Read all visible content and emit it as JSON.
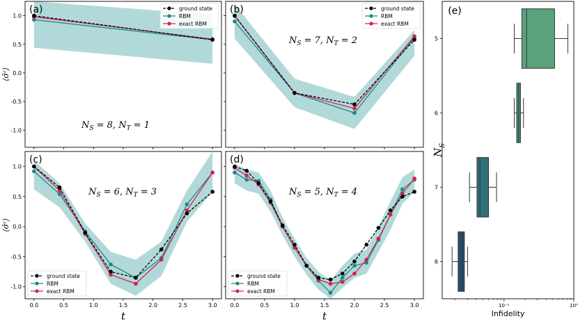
{
  "colors": {
    "ground": "#000000",
    "rbm": "#1a8a8a",
    "exact": "#d6204b",
    "band": "#7fbfbf",
    "box5": "#5aa37a",
    "box6": "#3f8f7c",
    "box7": "#2f6f7a",
    "box8": "#2a4d6e"
  },
  "legend": {
    "ground": "ground state",
    "rbm": "RBM",
    "exact": "exact RBM"
  },
  "labels": {
    "xlabel": "t",
    "ylabel": "⟨σ̂ᶻ⟩",
    "e_xlabel": "Infidelity",
    "e_ylabel": "N",
    "e_ylabel_sub": "S"
  },
  "chart_data": [
    {
      "type": "line",
      "panel": "(a)",
      "annotation": "N_S = 8, N_T = 1",
      "ylim": [
        -1.3,
        1.25
      ],
      "xlim": [
        -0.15,
        3.15
      ],
      "yticks": [
        -1.0,
        -0.5,
        0.0,
        0.5,
        1.0
      ],
      "legend_position": "top-right",
      "series": [
        {
          "name": "ground state",
          "x": [
            0.0,
            3.0
          ],
          "y": [
            1.0,
            0.58
          ]
        },
        {
          "name": "RBM",
          "x": [
            0.0,
            3.0
          ],
          "y": [
            0.93,
            0.58
          ],
          "band_lo": [
            0.44,
            0.16
          ],
          "band_hi": [
            1.25,
            1.02
          ]
        },
        {
          "name": "exact RBM",
          "x": [
            0.0,
            3.0
          ],
          "y": [
            0.98,
            0.59
          ]
        }
      ]
    },
    {
      "type": "line",
      "panel": "(b)",
      "annotation": "N_S = 7, N_T = 2",
      "ylim": [
        -1.3,
        1.25
      ],
      "xlim": [
        -0.15,
        3.15
      ],
      "legend_position": "top-right",
      "series": [
        {
          "name": "ground state",
          "x": [
            0.0,
            1.0,
            2.0,
            3.0
          ],
          "y": [
            1.0,
            -0.35,
            -0.55,
            0.58
          ]
        },
        {
          "name": "RBM",
          "x": [
            0.0,
            1.0,
            2.0,
            3.0
          ],
          "y": [
            0.9,
            -0.35,
            -0.7,
            0.62
          ],
          "band_lo": [
            0.6,
            -0.6,
            -0.98,
            0.3
          ],
          "band_hi": [
            1.2,
            -0.1,
            -0.42,
            0.75
          ]
        },
        {
          "name": "exact RBM",
          "x": [
            0.0,
            1.0,
            2.0,
            3.0
          ],
          "y": [
            1.0,
            -0.35,
            -0.62,
            0.64
          ]
        }
      ]
    },
    {
      "type": "line",
      "panel": "(c)",
      "annotation": "N_S = 6, N_T = 3",
      "ylim": [
        -1.2,
        1.25
      ],
      "xlim": [
        -0.15,
        3.15
      ],
      "xticks": [
        0.0,
        0.5,
        1.0,
        1.5,
        2.0,
        2.5,
        3.0
      ],
      "yticks": [
        -1.0,
        -0.5,
        0.0,
        0.5,
        1.0
      ],
      "legend_position": "bottom-left",
      "series": [
        {
          "name": "ground state",
          "x": [
            0.0,
            0.43,
            0.86,
            1.29,
            1.71,
            2.14,
            2.57,
            3.0
          ],
          "y": [
            1.0,
            0.65,
            -0.1,
            -0.75,
            -0.85,
            -0.38,
            0.22,
            0.58
          ]
        },
        {
          "name": "RBM",
          "x": [
            0.0,
            0.43,
            0.86,
            1.29,
            1.71,
            2.14,
            2.57,
            3.0
          ],
          "y": [
            0.92,
            0.54,
            -0.08,
            -0.63,
            -0.85,
            -0.52,
            0.37,
            0.9
          ],
          "band_lo": [
            0.62,
            0.32,
            -0.25,
            -0.95,
            -1.15,
            -0.82,
            0.08,
            0.58
          ],
          "band_hi": [
            1.1,
            0.72,
            0.05,
            -0.42,
            -0.55,
            -0.25,
            0.6,
            1.25
          ]
        },
        {
          "name": "exact RBM",
          "x": [
            0.0,
            0.43,
            0.86,
            1.29,
            1.71,
            2.14,
            2.57,
            3.0
          ],
          "y": [
            1.0,
            0.6,
            -0.12,
            -0.8,
            -0.95,
            -0.55,
            0.27,
            0.9
          ]
        }
      ]
    },
    {
      "type": "line",
      "panel": "(d)",
      "annotation": "N_S = 5, N_T = 4",
      "ylim": [
        -1.2,
        1.25
      ],
      "xlim": [
        -0.15,
        3.15
      ],
      "xticks": [
        0.0,
        0.5,
        1.0,
        1.5,
        2.0,
        2.5,
        3.0
      ],
      "legend_position": "bottom-left",
      "series": [
        {
          "name": "ground state",
          "x": [
            0.0,
            0.2,
            0.4,
            0.6,
            0.8,
            1.0,
            1.2,
            1.4,
            1.6,
            1.8,
            2.0,
            2.2,
            2.4,
            2.6,
            2.8,
            3.0
          ],
          "y": [
            1.0,
            0.93,
            0.72,
            0.42,
            0.02,
            -0.3,
            -0.65,
            -0.85,
            -0.88,
            -0.78,
            -0.58,
            -0.3,
            -0.02,
            0.27,
            0.5,
            0.58
          ]
        },
        {
          "name": "RBM",
          "x": [
            0.0,
            0.2,
            0.4,
            0.6,
            0.8,
            1.0,
            1.2,
            1.4,
            1.6,
            1.8,
            2.0,
            2.2,
            2.4,
            2.6,
            2.8,
            3.0
          ],
          "y": [
            0.9,
            0.78,
            0.76,
            0.45,
            0.0,
            -0.35,
            -0.65,
            -0.9,
            -1.1,
            -0.85,
            -0.65,
            -0.6,
            -0.22,
            0.2,
            0.62,
            0.78
          ],
          "band_lo": [
            0.72,
            0.6,
            0.55,
            0.25,
            -0.15,
            -0.5,
            -0.8,
            -1.05,
            -1.2,
            -1.02,
            -0.85,
            -0.78,
            -0.42,
            -0.05,
            0.38,
            0.58
          ],
          "band_hi": [
            1.05,
            0.95,
            0.9,
            0.6,
            0.15,
            -0.2,
            -0.52,
            -0.75,
            -0.9,
            -0.65,
            -0.45,
            -0.38,
            0.0,
            0.42,
            0.82,
            0.95
          ]
        },
        {
          "name": "exact RBM",
          "x": [
            0.0,
            0.2,
            0.4,
            0.6,
            0.8,
            1.0,
            1.2,
            1.4,
            1.6,
            1.8,
            2.0,
            2.2,
            2.4,
            2.6,
            2.8,
            3.0
          ],
          "y": [
            0.98,
            0.85,
            0.7,
            0.4,
            0.0,
            -0.35,
            -0.65,
            -0.88,
            -0.95,
            -0.92,
            -0.78,
            -0.55,
            -0.2,
            0.2,
            0.55,
            0.8
          ]
        }
      ]
    },
    {
      "type": "box",
      "panel": "(e)",
      "xlabel": "Infidelity",
      "ylabel": "N_S",
      "xscale": "log",
      "xlim": [
        0.013,
        1.0
      ],
      "xticks": [
        0.1,
        1.0
      ],
      "xtick_labels": [
        "10⁻¹",
        "10⁰"
      ],
      "categories": [
        "5",
        "6",
        "7",
        "8"
      ],
      "boxes": [
        {
          "category": "5",
          "whislo": 0.14,
          "q1": 0.18,
          "med": 0.21,
          "q3": 0.53,
          "whishi": 0.82
        },
        {
          "category": "6",
          "whislo": 0.14,
          "q1": 0.152,
          "med": 0.162,
          "q3": 0.172,
          "whishi": 0.19
        },
        {
          "category": "7",
          "whislo": 0.032,
          "q1": 0.041,
          "med": 0.045,
          "q3": 0.06,
          "whishi": 0.078
        },
        {
          "category": "8",
          "whislo": 0.018,
          "q1": 0.022,
          "med": 0.025,
          "q3": 0.027,
          "whishi": 0.03
        }
      ]
    }
  ]
}
